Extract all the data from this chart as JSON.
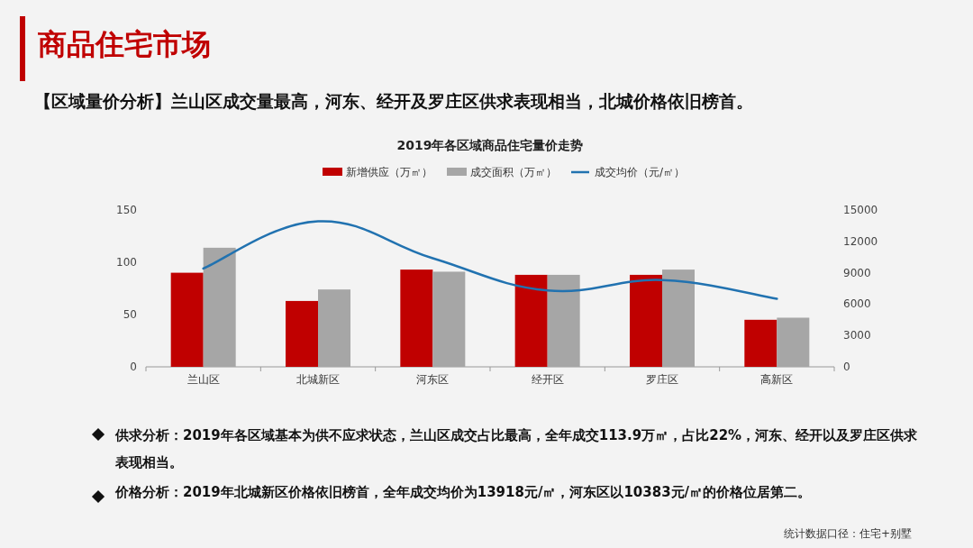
{
  "chart_data": {
    "type": "bar",
    "title": "2019年各区域商品住宅量价走势",
    "annotations": [
      "商品住宅市场",
      "【区域量价分析】兰山区成交量最高，河东、经开及罗庄区供求表现相当，北城价格依旧榜首。",
      "供求分析：2019年各区域基本为供不应求状态，兰山区成交占比最高，全年成交113.9万㎡，占比22%，河东、经开以及罗庄区供求表现相当。",
      "价格分析：2019年北城新区价格依旧榜首，全年成交均价为13918元/㎡，河东区以10383元/㎡的价格位居第二。",
      "统计数据口径：住宅+别墅"
    ],
    "categories": [
      "兰山区",
      "北城新区",
      "河东区",
      "经开区",
      "罗庄区",
      "高新区"
    ],
    "series": [
      {
        "name": "新增供应（万㎡）",
        "color": "#c00000",
        "values": [
          90,
          63,
          93,
          88,
          88,
          45
        ]
      },
      {
        "name": "成交面积（万㎡）",
        "color": "#a6a6a6",
        "values": [
          113.9,
          74,
          91,
          88,
          93,
          47
        ]
      },
      {
        "name": "成交均价（元/㎡）",
        "type": "line",
        "axis": "y2",
        "color": "#2172b0",
        "values": [
          9400,
          13918,
          10383,
          7300,
          8300,
          6500
        ]
      }
    ],
    "ylim": [
      0,
      150
    ],
    "yticks": [
      0,
      50,
      100,
      150
    ],
    "y2lim": [
      0,
      15000
    ],
    "y2ticks": [
      0,
      3000,
      6000,
      9000,
      12000,
      15000
    ],
    "grid": false,
    "legend": "top"
  }
}
